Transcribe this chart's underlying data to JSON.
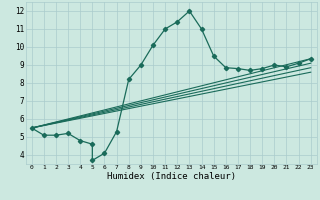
{
  "title": "",
  "xlabel": "Humidex (Indice chaleur)",
  "ylabel": "",
  "xlim": [
    -0.5,
    23.5
  ],
  "ylim": [
    3.5,
    12.5
  ],
  "xticks": [
    0,
    1,
    2,
    3,
    4,
    5,
    6,
    7,
    8,
    9,
    10,
    11,
    12,
    13,
    14,
    15,
    16,
    17,
    18,
    19,
    20,
    21,
    22,
    23
  ],
  "yticks": [
    4,
    5,
    6,
    7,
    8,
    9,
    10,
    11,
    12
  ],
  "background_color": "#cce8e0",
  "grid_color": "#aacccc",
  "line_color": "#1a6b5a",
  "main_line": {
    "x": [
      0,
      1,
      2,
      3,
      4,
      5,
      5,
      6,
      7,
      8,
      9,
      10,
      11,
      12,
      13,
      14,
      15,
      16,
      17,
      18,
      19,
      20,
      21,
      22,
      23
    ],
    "y": [
      5.5,
      5.1,
      5.1,
      5.2,
      4.8,
      4.6,
      3.7,
      4.1,
      5.3,
      8.2,
      9.0,
      10.1,
      11.0,
      11.4,
      12.0,
      11.0,
      9.5,
      8.85,
      8.8,
      8.7,
      8.8,
      9.0,
      8.9,
      9.1,
      9.35
    ]
  },
  "trend_lines": [
    {
      "x": [
        0,
        23
      ],
      "y": [
        5.5,
        9.35
      ]
    },
    {
      "x": [
        0,
        23
      ],
      "y": [
        5.5,
        9.1
      ]
    },
    {
      "x": [
        0,
        23
      ],
      "y": [
        5.5,
        8.85
      ]
    },
    {
      "x": [
        0,
        23
      ],
      "y": [
        5.5,
        8.6
      ]
    }
  ]
}
